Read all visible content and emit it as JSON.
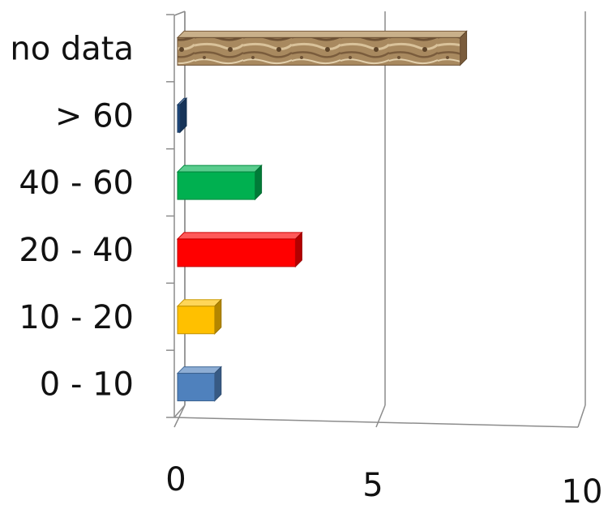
{
  "chart_data": {
    "type": "bar",
    "orientation": "horizontal",
    "style": "3d",
    "categories": [
      "0 - 10",
      "10 - 20",
      "20 - 40",
      "40 - 60",
      "> 60",
      "no data"
    ],
    "values": [
      1,
      1,
      3,
      2,
      0.05,
      7
    ],
    "colors": [
      "#4f81bd",
      "#ffc000",
      "#ff0000",
      "#00b050",
      "#1f497d",
      "#a0825a"
    ],
    "xlim": [
      0,
      10
    ],
    "xticks": [
      "0",
      "5",
      "10"
    ],
    "grid": true,
    "legend": "none"
  }
}
